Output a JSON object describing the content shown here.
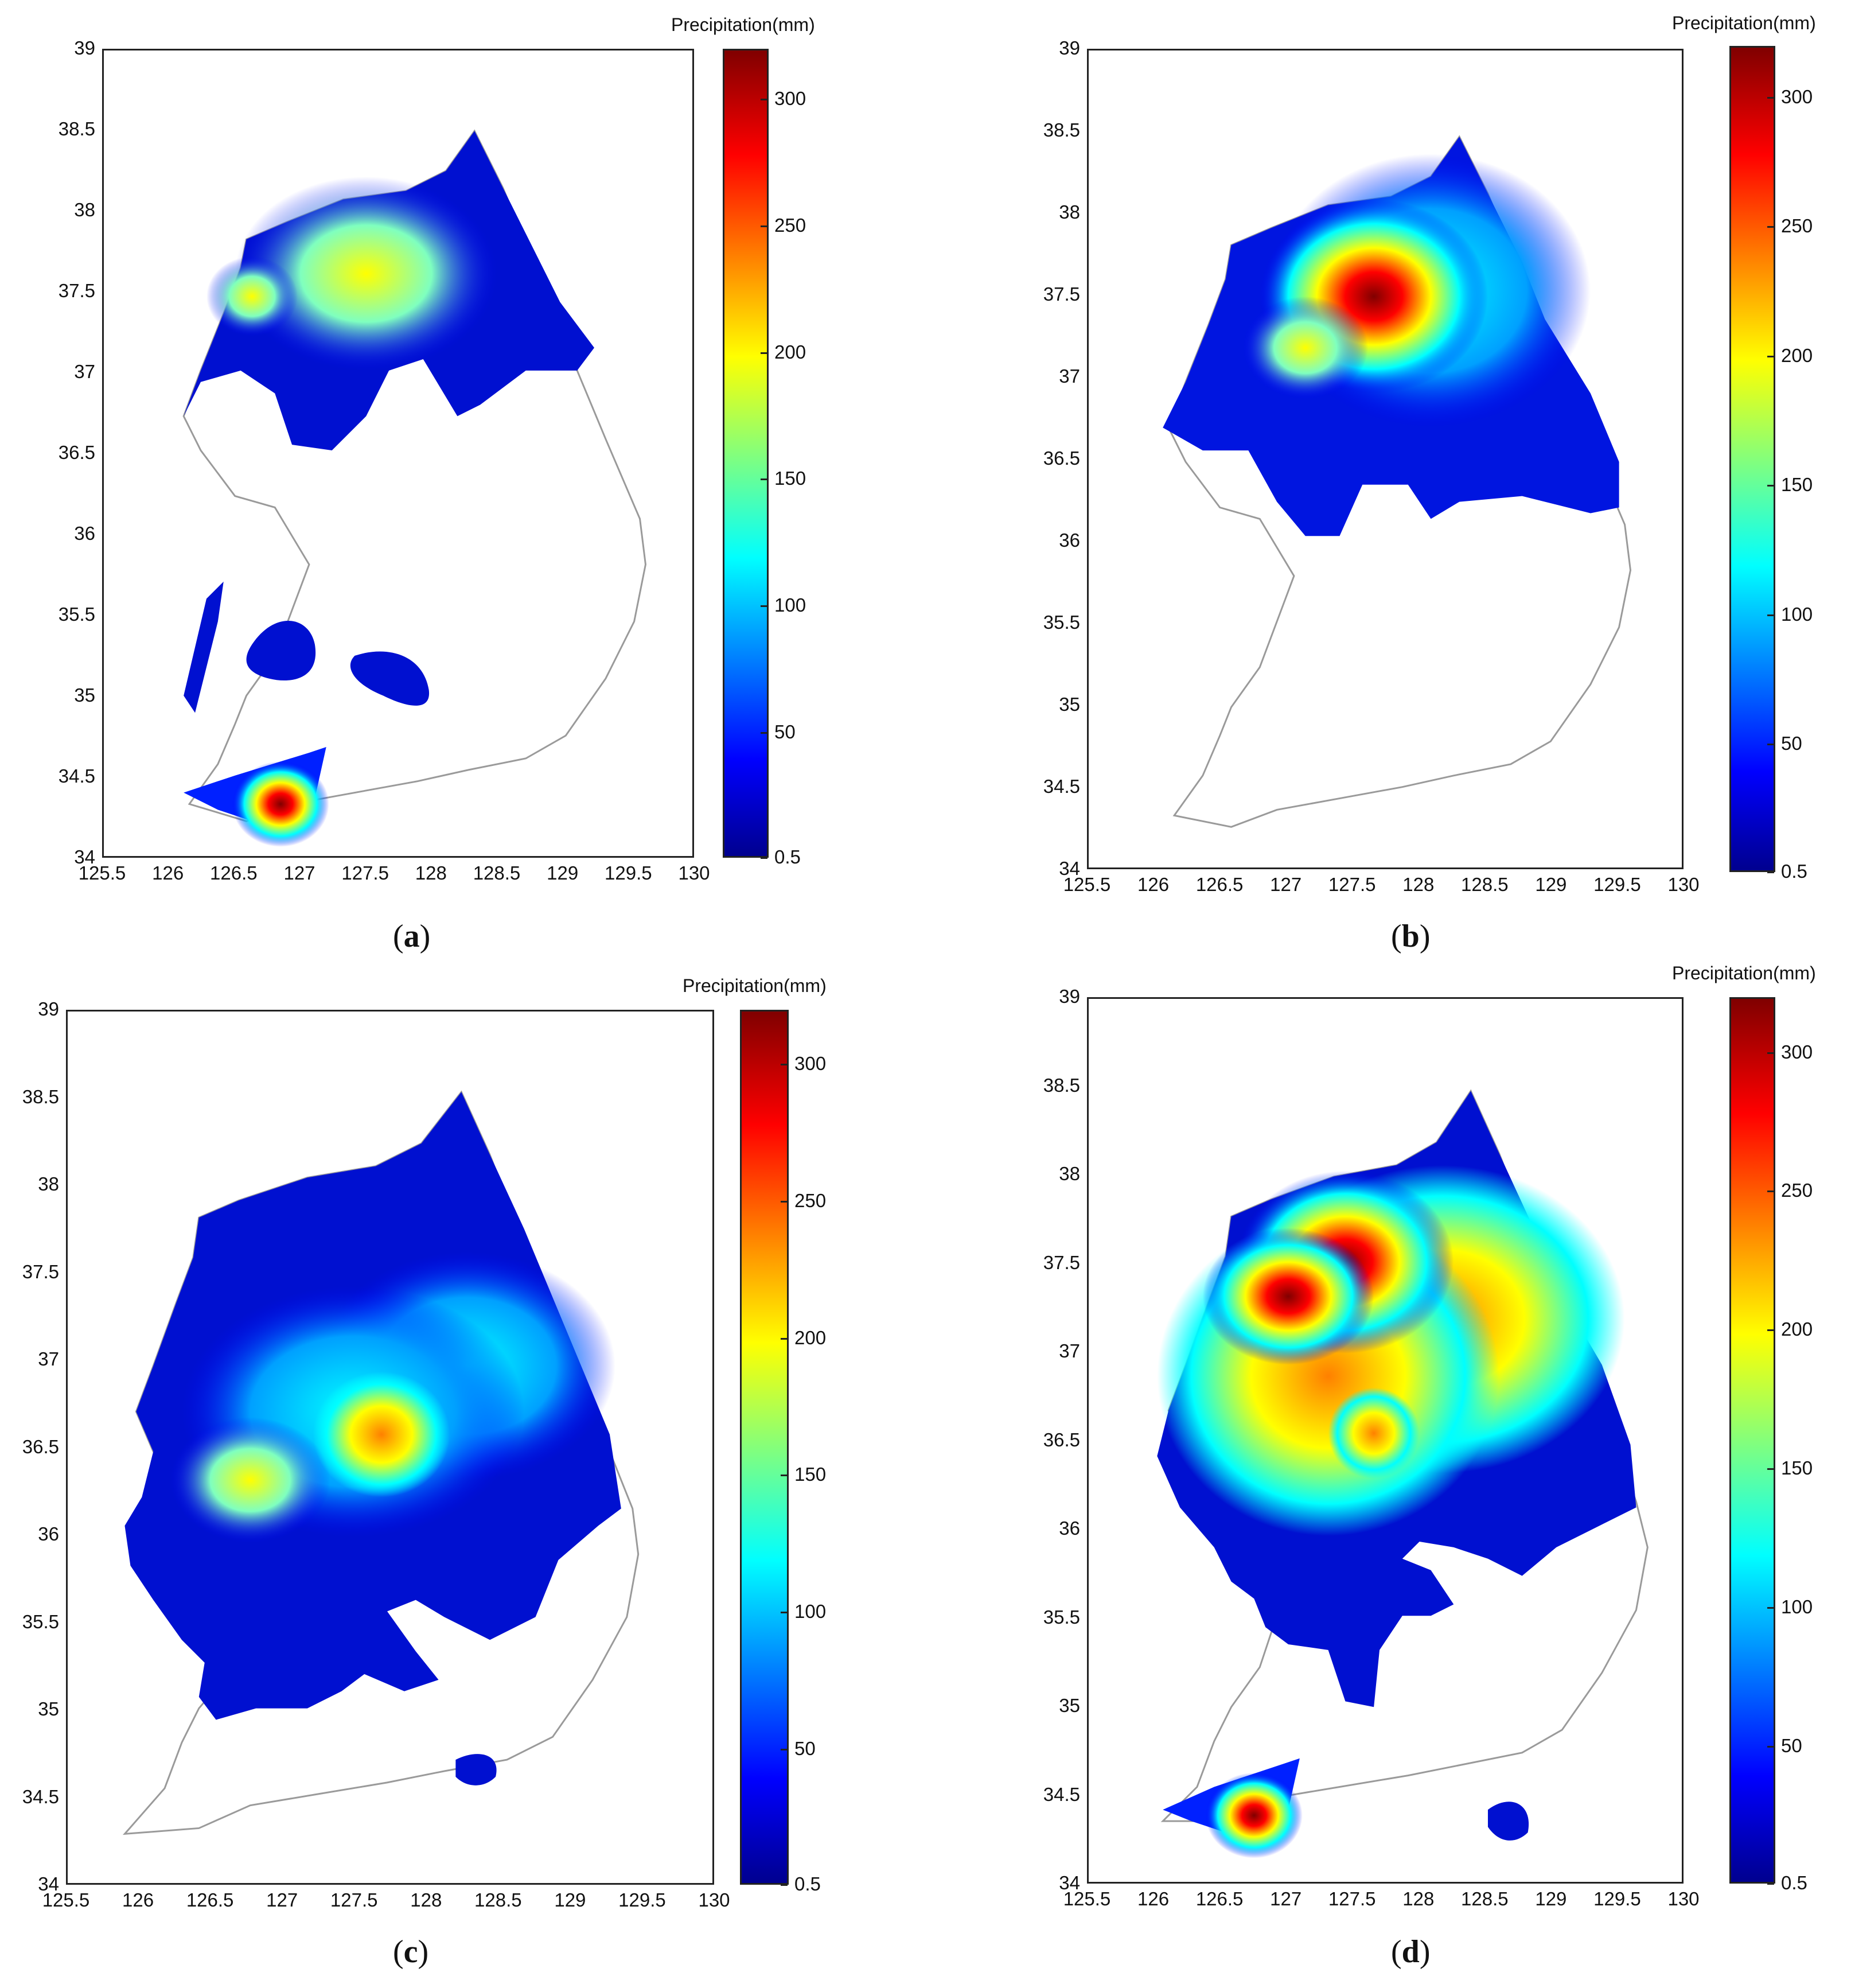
{
  "figure": {
    "colorbar_title": "Precipitation(mm)",
    "colorbar_ticks": [
      "0.5",
      "50",
      "100",
      "150",
      "200",
      "250",
      "300"
    ],
    "colorbar_range": [
      0.5,
      320
    ],
    "colormap": "jet",
    "x_ticks": [
      "125.5",
      "126",
      "126.5",
      "127",
      "127.5",
      "128",
      "128.5",
      "129",
      "129.5",
      "130"
    ],
    "y_ticks": [
      "34",
      "34.5",
      "35",
      "35.5",
      "36",
      "36.5",
      "37",
      "37.5",
      "38",
      "38.5",
      "39"
    ],
    "xlim": [
      125.5,
      130
    ],
    "ylim": [
      34,
      39
    ]
  },
  "panels": [
    {
      "id": "a",
      "caption_open": "(",
      "caption_label": "a",
      "caption_close": ")"
    },
    {
      "id": "b",
      "caption_open": "(",
      "caption_label": "b",
      "caption_close": ")"
    },
    {
      "id": "c",
      "caption_open": "(",
      "caption_label": "c",
      "caption_close": ")"
    },
    {
      "id": "d",
      "caption_open": "(",
      "caption_label": "d",
      "caption_close": ")"
    }
  ],
  "colors": {
    "jet_0": "#00008f",
    "jet_1": "#0000ff",
    "jet_2": "#00ffff",
    "jet_3": "#ffff00",
    "jet_4": "#ff0000",
    "jet_5": "#800000",
    "outline": "#9a9a9a"
  }
}
